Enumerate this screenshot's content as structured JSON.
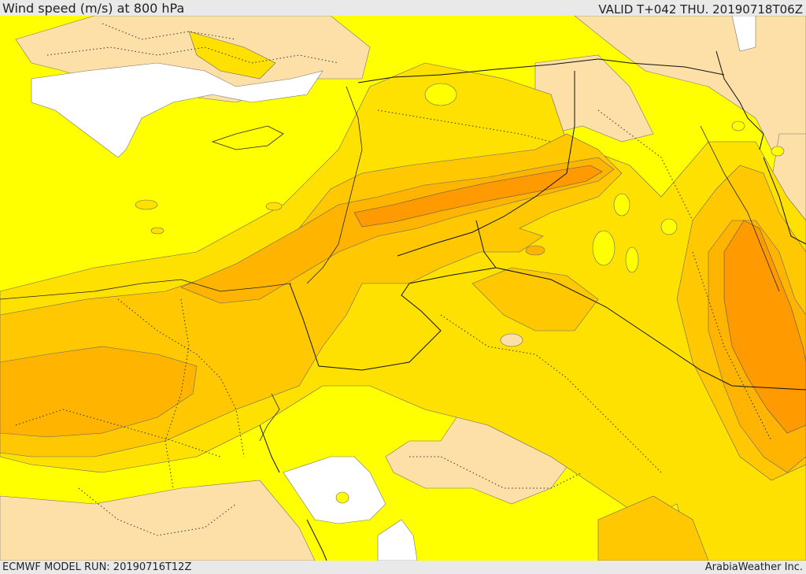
{
  "header": {
    "title": "Wind speed (m/s) at 800 hPa",
    "valid": "VALID T+042 THU. 20190718T06Z"
  },
  "footer": {
    "model_run": "ECMWF MODEL RUN: 20190716T12Z",
    "credit": "ArabiaWeather Inc."
  },
  "colors": {
    "lowest_band": "#fde0a8",
    "yellow": "#ffff00",
    "gold": "#ffe100",
    "amber": "#ffc800",
    "orange_light": "#ffb400",
    "orange": "#ff9a00",
    "no_data": "#ffffff",
    "contour_line": "#555555",
    "border_line": "#111111"
  },
  "map": {
    "field": "wind speed",
    "units": "m/s",
    "pressure_level": "800 hPa",
    "region": "Eastern Mediterranean, Egypt, Levant, Arabian Peninsula"
  }
}
